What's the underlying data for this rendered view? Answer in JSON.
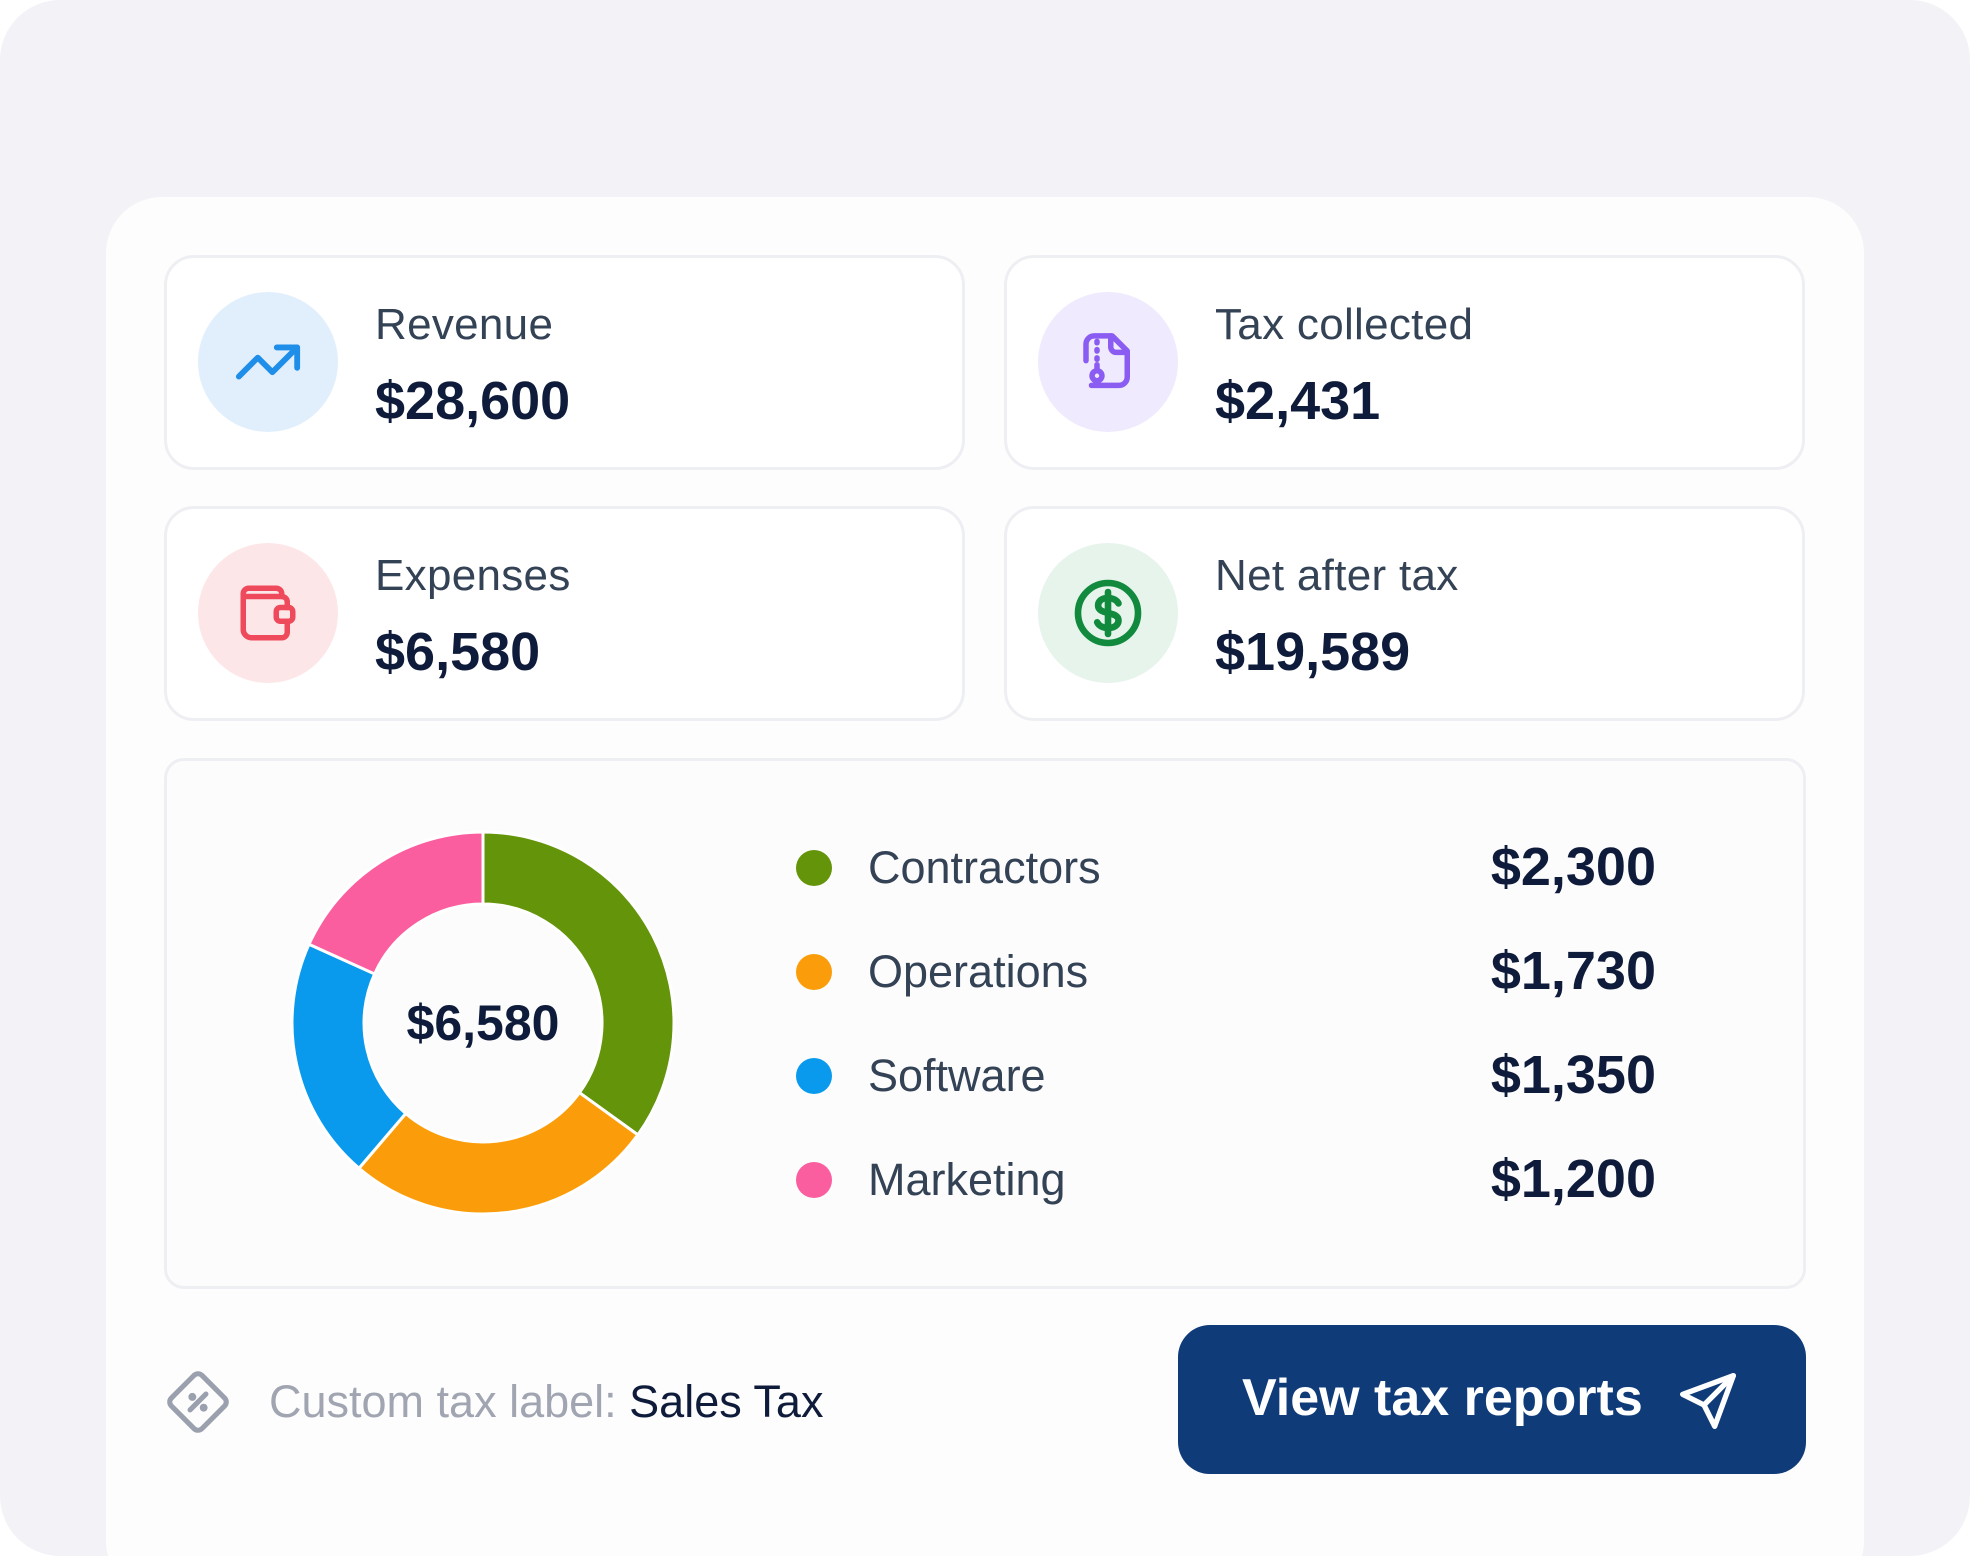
{
  "stats": [
    {
      "label": "Revenue",
      "value": "$28,600",
      "icon": "trending-up-icon",
      "icon_bg": "#e1effd",
      "icon_color": "#1f8ee8"
    },
    {
      "label": "Tax collected",
      "value": "$2,431",
      "icon": "file-zip-icon",
      "icon_bg": "#efeafd",
      "icon_color": "#8a5cf2"
    },
    {
      "label": "Expenses",
      "value": "$6,580",
      "icon": "wallet-icon",
      "icon_bg": "#fde6e8",
      "icon_color": "#ee4a5c"
    },
    {
      "label": "Net after tax",
      "value": "$19,589",
      "icon": "dollar-circle-icon",
      "icon_bg": "#e6f4ec",
      "icon_color": "#118a3e"
    }
  ],
  "chart_data": {
    "type": "pie",
    "variant": "donut",
    "center_label": "$6,580",
    "total": 6580,
    "categories": [
      "Contractors",
      "Operations",
      "Software",
      "Marketing"
    ],
    "values": [
      2300,
      1730,
      1350,
      1200
    ],
    "value_labels": [
      "$2,300",
      "$1,730",
      "$1,350",
      "$1,200"
    ],
    "colors": [
      "#63940a",
      "#fb9d0a",
      "#0a9aed",
      "#fb5e9e"
    ]
  },
  "footer": {
    "tax_label_prefix": "Custom tax label: ",
    "tax_label_value": "Sales Tax",
    "tax_icon": "discount-tag-icon",
    "cta_label": "View tax reports",
    "cta_icon": "send-icon",
    "cta_color": "#0f3b78"
  }
}
